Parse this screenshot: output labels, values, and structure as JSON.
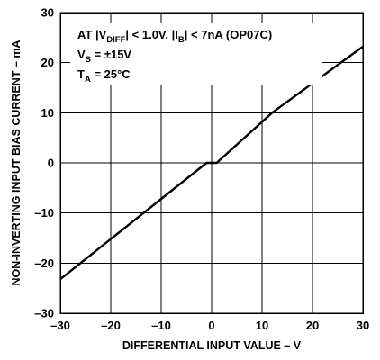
{
  "chart_data": {
    "type": "line",
    "xlabel": "DIFFERENTIAL INPUT VALUE – V",
    "ylabel": "NON-INVERTING INPUT BIAS CURRENT – mA",
    "xlim": [
      -30,
      30
    ],
    "ylim": [
      -30,
      30
    ],
    "x_ticks": [
      -30,
      -20,
      -10,
      0,
      10,
      20,
      30
    ],
    "y_ticks": [
      -30,
      -20,
      -10,
      0,
      10,
      20,
      30
    ],
    "x_tick_labels": [
      "–30",
      "–20",
      "–10",
      "0",
      "10",
      "20",
      "30"
    ],
    "y_tick_labels": [
      "–30",
      "–20",
      "–10",
      "0",
      "10",
      "20",
      "30"
    ],
    "grid": true,
    "annotations": {
      "line1": {
        "pre": "AT |V",
        "sub1": "DIFF",
        "mid": "| < 1.0V. |I",
        "sub2": "B",
        "post": "| < 7nA (OP07C)"
      },
      "line2": {
        "pre": "V",
        "sub": "S",
        "post": " = ±15V"
      },
      "line3": {
        "pre": "T",
        "sub": "A",
        "post": " = 25°C"
      }
    },
    "series": [
      {
        "x": [
          -30,
          -1,
          1,
          12,
          30
        ],
        "y": [
          -23.2,
          0,
          0,
          10,
          23.2
        ]
      }
    ]
  }
}
